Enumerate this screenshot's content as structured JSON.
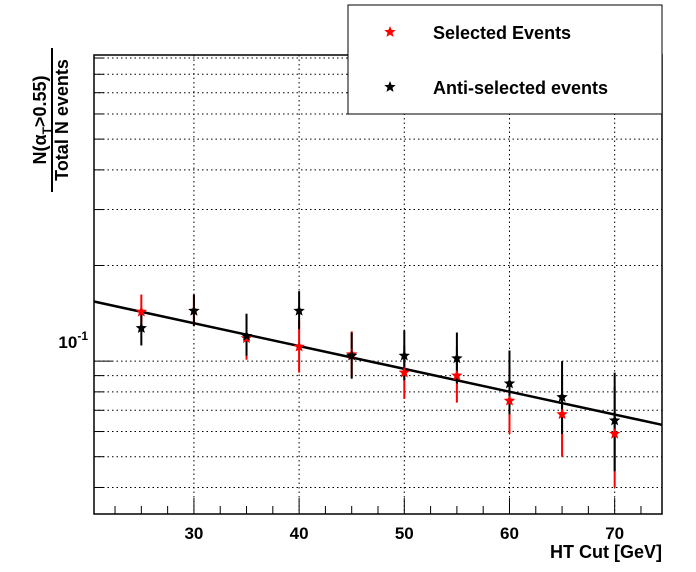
{
  "chart_data": {
    "type": "scatter",
    "xlabel": "HT Cut [GeV]",
    "ylabel": {
      "numerator_prefix": "N(",
      "alpha": "α",
      "sub": "T",
      "numerator_suffix": ">0.55)",
      "denominator": "Total N events"
    },
    "xlim": [
      20.5,
      74.5
    ],
    "ylim": [
      0.033,
      0.92
    ],
    "yscale": "log",
    "x_ticks": [
      30,
      40,
      50,
      60,
      70
    ],
    "x_tick_labels": [
      "30",
      "40",
      "50",
      "60",
      "70"
    ],
    "y_tick_label": {
      "base": "10",
      "exp": "-1"
    },
    "grid": true,
    "legend": {
      "position": "top-right",
      "entries": [
        "Selected Events",
        "Anti-selected events"
      ]
    },
    "series": [
      {
        "name": "Selected Events",
        "color": "#ff0000",
        "x": [
          25,
          30,
          35,
          40,
          45,
          50,
          55,
          60,
          65,
          70
        ],
        "y": [
          0.143,
          0.144,
          0.118,
          0.111,
          0.105,
          0.092,
          0.09,
          0.075,
          0.068,
          0.059
        ],
        "err_low": [
          0.017,
          0.015,
          0.017,
          0.019,
          0.016,
          0.016,
          0.016,
          0.016,
          0.018,
          0.019
        ],
        "err_high": [
          0.019,
          0.018,
          0.022,
          0.023,
          0.019,
          0.02,
          0.021,
          0.021,
          0.022,
          0.024
        ]
      },
      {
        "name": "Anti-selected events",
        "color": "#000000",
        "x": [
          25,
          30,
          35,
          40,
          45,
          50,
          55,
          60,
          65,
          70
        ],
        "y": [
          0.127,
          0.144,
          0.12,
          0.144,
          0.104,
          0.104,
          0.102,
          0.085,
          0.077,
          0.065
        ],
        "err_low": [
          0.015,
          0.015,
          0.016,
          0.018,
          0.016,
          0.017,
          0.017,
          0.017,
          0.018,
          0.02
        ],
        "err_high": [
          0.017,
          0.018,
          0.021,
          0.022,
          0.019,
          0.021,
          0.021,
          0.023,
          0.023,
          0.027
        ]
      }
    ],
    "fit_line": {
      "x": [
        20.5,
        74.5
      ],
      "y": [
        0.154,
        0.063
      ],
      "color": "#000000"
    }
  }
}
